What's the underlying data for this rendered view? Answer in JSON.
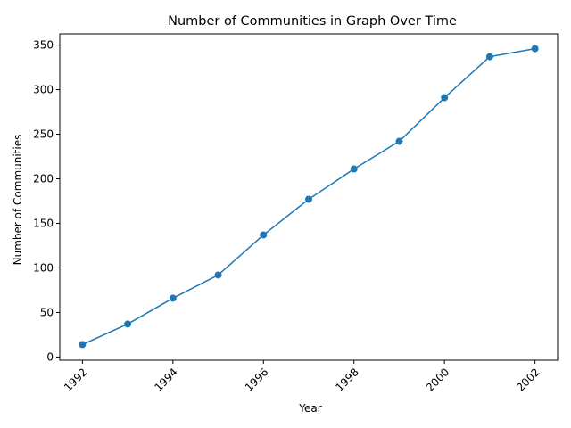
{
  "chart_data": {
    "type": "line",
    "title": "Number of Communities in Graph Over Time",
    "xlabel": "Year",
    "ylabel": "Number of Communities",
    "x": [
      1992,
      1993,
      1994,
      1995,
      1996,
      1997,
      1998,
      1999,
      2000,
      2001,
      2002
    ],
    "series": [
      {
        "values": [
          14,
          37,
          66,
          92,
          137,
          177,
          211,
          242,
          291,
          337,
          346
        ]
      }
    ],
    "xticks": [
      1992,
      1994,
      1996,
      1998,
      2000,
      2002
    ],
    "yticks": [
      0,
      50,
      100,
      150,
      200,
      250,
      300,
      350
    ],
    "xlim": [
      1991.5,
      2002.5
    ],
    "ylim": [
      -3.6,
      362.6
    ],
    "xtick_rotation": 45,
    "marker": "circle",
    "grid": false,
    "line_color": "#1f77b4"
  }
}
